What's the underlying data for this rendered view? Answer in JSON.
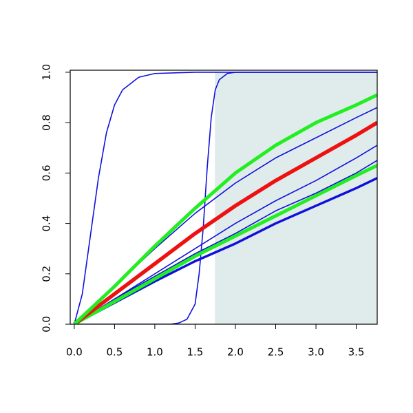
{
  "chart_data": {
    "type": "line",
    "xlim": [
      -0.05,
      3.76
    ],
    "ylim": [
      0,
      1.008
    ],
    "xticks": [
      {
        "value": 0,
        "label": "0.0"
      },
      {
        "value": 0.5,
        "label": "0.5"
      },
      {
        "value": 1,
        "label": "1.0"
      },
      {
        "value": 1.5,
        "label": "1.5"
      },
      {
        "value": 2,
        "label": "2.0"
      },
      {
        "value": 2.5,
        "label": "2.5"
      },
      {
        "value": 3,
        "label": "3.0"
      },
      {
        "value": 3.5,
        "label": "3.5"
      }
    ],
    "yticks": [
      {
        "value": 0,
        "label": "0.0"
      },
      {
        "value": 0.2,
        "label": "0.2"
      },
      {
        "value": 0.4,
        "label": "0.4"
      },
      {
        "value": 0.6,
        "label": "0.6"
      },
      {
        "value": 0.8,
        "label": "0.8"
      },
      {
        "value": 1,
        "label": "1.0"
      }
    ],
    "shaded_region": {
      "xlim": [
        1.745,
        3.76
      ],
      "ylim": [
        0,
        1
      ],
      "color": "#e0ecec"
    },
    "series": [
      {
        "color": "#1010dd",
        "width": 1.6,
        "x": [
          0,
          0.1,
          0.2,
          0.3,
          0.4,
          0.5,
          0.6,
          0.8,
          1.0,
          1.5,
          2.0,
          3.76
        ],
        "values": [
          0,
          0.12,
          0.35,
          0.58,
          0.76,
          0.87,
          0.93,
          0.98,
          0.995,
          1,
          1,
          1
        ]
      },
      {
        "color": "#1010dd",
        "width": 1.6,
        "x": [
          0,
          1.2,
          1.3,
          1.4,
          1.5,
          1.55,
          1.6,
          1.625,
          1.65,
          1.7,
          1.75,
          1.8,
          1.9,
          2.0,
          3.76
        ],
        "values": [
          0,
          0,
          0.005,
          0.02,
          0.08,
          0.2,
          0.38,
          0.5,
          0.62,
          0.82,
          0.93,
          0.97,
          0.995,
          1,
          1
        ]
      },
      {
        "color": "#1010dd",
        "width": 1.6,
        "x": [
          0,
          0.5,
          1,
          1.5,
          2,
          2.5,
          3,
          3.5,
          3.76
        ],
        "values": [
          0,
          0.15,
          0.3,
          0.44,
          0.56,
          0.66,
          0.74,
          0.82,
          0.86
        ]
      },
      {
        "color": "#1010dd",
        "width": 1.6,
        "x": [
          0,
          0.5,
          1,
          1.5,
          2,
          2.5,
          3,
          3.5,
          3.76
        ],
        "values": [
          0,
          0.1,
          0.2,
          0.3,
          0.4,
          0.49,
          0.57,
          0.66,
          0.71
        ]
      },
      {
        "color": "#1010dd",
        "width": 1.6,
        "x": [
          0,
          0.5,
          1,
          1.5,
          2,
          2.5,
          3,
          3.5,
          3.76
        ],
        "values": [
          0,
          0.1,
          0.19,
          0.28,
          0.36,
          0.45,
          0.52,
          0.6,
          0.65
        ]
      },
      {
        "color": "#1010dd",
        "width": 3.5,
        "x": [
          0,
          0.5,
          1,
          1.5,
          2,
          2.5,
          3,
          3.5,
          3.76
        ],
        "values": [
          0,
          0.085,
          0.17,
          0.25,
          0.32,
          0.4,
          0.47,
          0.54,
          0.58
        ]
      },
      {
        "color": "#22ee22",
        "width": 5,
        "x": [
          0,
          0.5,
          1,
          1.5,
          2,
          2.5,
          3,
          3.5,
          3.76
        ],
        "values": [
          0,
          0.09,
          0.18,
          0.27,
          0.35,
          0.43,
          0.51,
          0.59,
          0.63
        ]
      },
      {
        "color": "#ee1111",
        "width": 5.5,
        "x": [
          0,
          0.5,
          1,
          1.5,
          2,
          2.5,
          3,
          3.5,
          3.76
        ],
        "values": [
          0,
          0.12,
          0.24,
          0.36,
          0.47,
          0.57,
          0.66,
          0.75,
          0.8
        ]
      },
      {
        "color": "#22ee22",
        "width": 5,
        "x": [
          0,
          0.5,
          1,
          1.5,
          2,
          2.5,
          3,
          3.5,
          3.76
        ],
        "values": [
          0,
          0.15,
          0.31,
          0.46,
          0.6,
          0.71,
          0.8,
          0.87,
          0.91
        ]
      }
    ]
  }
}
